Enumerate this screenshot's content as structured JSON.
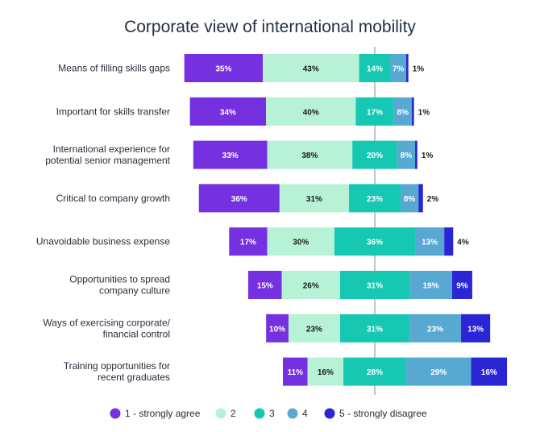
{
  "chart_data": {
    "type": "bar",
    "subtype": "diverging-stacked-horizontal",
    "title": "Corporate view of international mobility",
    "categories": [
      [
        "Means of filling skills gaps"
      ],
      [
        "Important for skills transfer"
      ],
      [
        "International experience for",
        "potential senior management"
      ],
      [
        "Critical to company growth"
      ],
      [
        "Unavoidable business expense"
      ],
      [
        "Opportunities to spread",
        "company culture"
      ],
      [
        "Ways of exercising corporate/",
        "financial control"
      ],
      [
        "Training opportunities for",
        "recent graduates"
      ]
    ],
    "series": [
      {
        "name": "1 - strongly agree",
        "color": "#7530E0",
        "text_color": "#ffffff",
        "values": [
          35,
          34,
          33,
          36,
          17,
          15,
          10,
          11
        ]
      },
      {
        "name": "2",
        "color": "#B8F2D6",
        "text_color": "#1a1a1a",
        "values": [
          43,
          40,
          38,
          31,
          30,
          26,
          23,
          16
        ]
      },
      {
        "name": "3",
        "color": "#16C8B2",
        "text_color": "#ffffff",
        "values": [
          14,
          17,
          20,
          23,
          36,
          31,
          31,
          28
        ]
      },
      {
        "name": "4",
        "color": "#58A9D2",
        "text_color": "#ffffff",
        "values": [
          7,
          8,
          8,
          8,
          13,
          19,
          23,
          29
        ]
      },
      {
        "name": "5 - strongly disagree",
        "color": "#2A26D6",
        "text_color": "#ffffff",
        "values": [
          1,
          1,
          1,
          2,
          4,
          9,
          13,
          16
        ]
      }
    ],
    "value_suffix": "%",
    "xlabel": "",
    "ylabel": "",
    "legend_position": "bottom"
  }
}
